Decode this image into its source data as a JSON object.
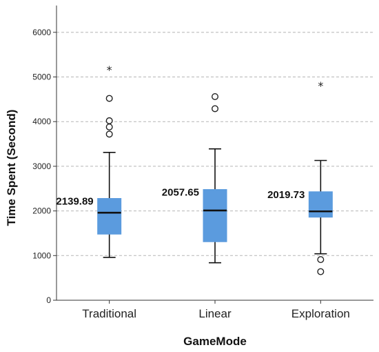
{
  "chart_data": {
    "type": "boxplot",
    "xlabel": "GameMode",
    "ylabel": "Time Spent (Second)",
    "ylim": [
      0,
      6600
    ],
    "yticks": [
      0,
      1000,
      2000,
      3000,
      4000,
      5000,
      6000
    ],
    "grid": "horizontal dashed",
    "box_color": "#5b9bde",
    "categories": [
      "Traditional",
      "Linear",
      "Exploration"
    ],
    "boxes": [
      {
        "category": "Traditional",
        "whisker_low": 960,
        "q1": 1480,
        "median": 1960,
        "q3": 2280,
        "whisker_high": 3310,
        "outliers": [
          3720,
          3880,
          4020,
          4520
        ],
        "extremes": [
          5180
        ],
        "mean_label": "2139.89"
      },
      {
        "category": "Linear",
        "whisker_low": 840,
        "q1": 1310,
        "median": 2010,
        "q3": 2480,
        "whisker_high": 3390,
        "outliers": [
          4290,
          4560
        ],
        "extremes": [],
        "mean_label": "2057.65"
      },
      {
        "category": "Exploration",
        "whisker_low": 1040,
        "q1": 1860,
        "median": 1990,
        "q3": 2430,
        "whisker_high": 3130,
        "outliers": [
          640,
          910
        ],
        "extremes": [
          4820
        ],
        "mean_label": "2019.73"
      }
    ]
  }
}
